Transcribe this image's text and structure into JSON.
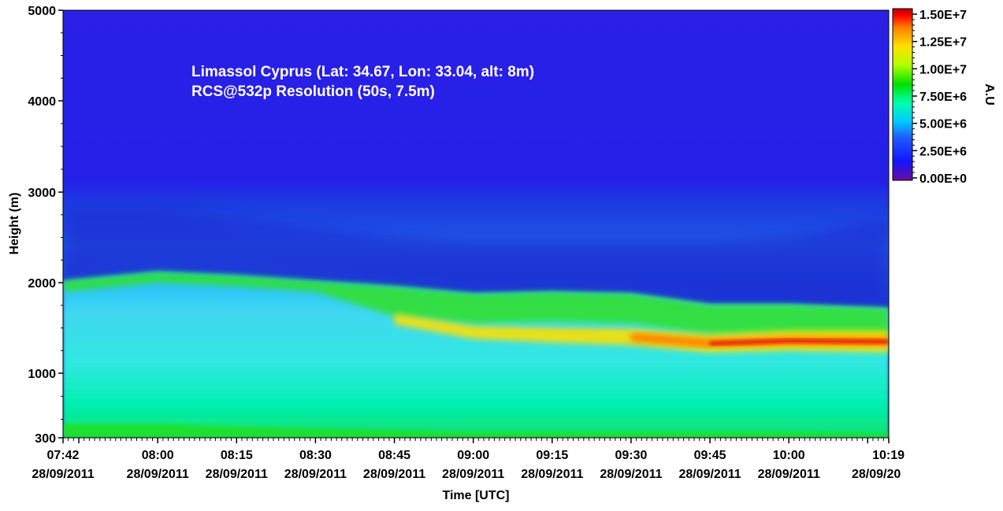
{
  "chart_data": {
    "type": "heatmap",
    "annotations": [
      "Limassol Cyprus (Lat: 34.67, Lon: 33.04, alt: 8m)",
      "RCS@532p Resolution (50s, 7.5m)"
    ],
    "xlabel": "Time [UTC]",
    "ylabel": "Height (m)",
    "colorbar_label": "A.U",
    "x_tick_labels": [
      {
        "time": "07:42",
        "date": "28/09/2011"
      },
      {
        "time": "08:00",
        "date": "28/09/2011"
      },
      {
        "time": "08:15",
        "date": "28/09/2011"
      },
      {
        "time": "08:30",
        "date": "28/09/2011"
      },
      {
        "time": "08:45",
        "date": "28/09/2011"
      },
      {
        "time": "09:00",
        "date": "28/09/2011"
      },
      {
        "time": "09:15",
        "date": "28/09/2011"
      },
      {
        "time": "09:30",
        "date": "28/09/2011"
      },
      {
        "time": "09:45",
        "date": "28/09/2011"
      },
      {
        "time": "10:00",
        "date": "28/09/2011"
      },
      {
        "time": "10:19",
        "date": "28/09/20"
      }
    ],
    "y_tick_labels": [
      "300",
      "1000",
      "2000",
      "3000",
      "4000",
      "5000"
    ],
    "xlim": [
      "07:42",
      "10:19"
    ],
    "ylim": [
      300,
      5000
    ],
    "colorbar": {
      "range": [
        0,
        15000000
      ],
      "tick_labels": [
        "0.00E+0",
        "2.50E+6",
        "5.00E+6",
        "7.50E+6",
        "1.00E+7",
        "1.25E+7",
        "1.50E+7"
      ],
      "tick_values": [
        0,
        2500000,
        5000000,
        7500000,
        10000000,
        12500000,
        15000000
      ],
      "colors": [
        "#6a0d9c",
        "#1414ff",
        "#00c8ff",
        "#00ffb0",
        "#00e000",
        "#b0ff00",
        "#ffe000",
        "#ff8000",
        "#ff0000",
        "#b00000"
      ]
    },
    "features": {
      "times": [
        "07:42",
        "08:00",
        "08:15",
        "08:30",
        "08:45",
        "09:00",
        "09:15",
        "09:30",
        "09:45",
        "10:00",
        "10:19"
      ],
      "aerosol_layer_top_m": [
        2020,
        2120,
        2080,
        2020,
        1960,
        1880,
        1900,
        1880,
        1760,
        1760,
        1720
      ],
      "dense_layer_center_m": [
        null,
        null,
        null,
        null,
        1600,
        1450,
        1420,
        1400,
        1330,
        1360,
        1350
      ],
      "residual_layer_top_m": [
        2800,
        2800,
        2700,
        2600,
        2500,
        2450,
        2450,
        2450,
        2450,
        2500,
        2700
      ],
      "surface_layer_top_m": [
        450,
        450,
        420,
        400,
        380,
        360,
        360,
        360,
        360,
        360,
        340
      ]
    }
  }
}
